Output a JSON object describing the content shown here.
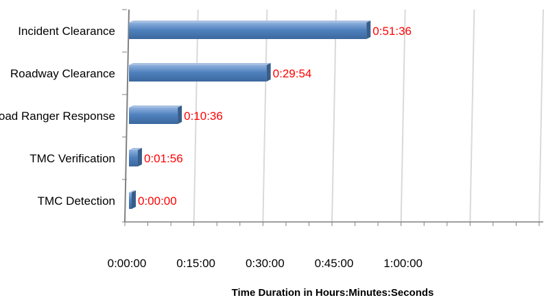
{
  "chart_data": {
    "type": "bar",
    "orientation": "horizontal",
    "categories": [
      "Incident Clearance",
      "Roadway Clearance",
      "Road Ranger Response",
      "TMC Verification",
      "TMC Detection"
    ],
    "values_seconds": [
      3096,
      1794,
      636,
      116,
      0
    ],
    "data_labels": [
      "0:51:36",
      "0:29:54",
      "0:10:36",
      "0:01:56",
      "0:00:00"
    ],
    "x_ticks_seconds": [
      0,
      900,
      1800,
      2700,
      3600
    ],
    "x_tick_labels": [
      "0:00:00",
      "0:15:00",
      "0:30:00",
      "0:45:00",
      "1:00:00"
    ],
    "xlim_seconds": [
      0,
      5400
    ],
    "xlabel": "Time Duration  in Hours:Minutes:Seconds",
    "ylabel": "",
    "title": "",
    "grid": "vertical",
    "legend": "none",
    "colors": {
      "bar": "#4f81bd",
      "bar_light": "#a7c0e3",
      "bar_dark": "#385d8a",
      "data_label": "#ff0000",
      "grid": "#d9d9d9",
      "axis": "#7f7f7f"
    }
  }
}
